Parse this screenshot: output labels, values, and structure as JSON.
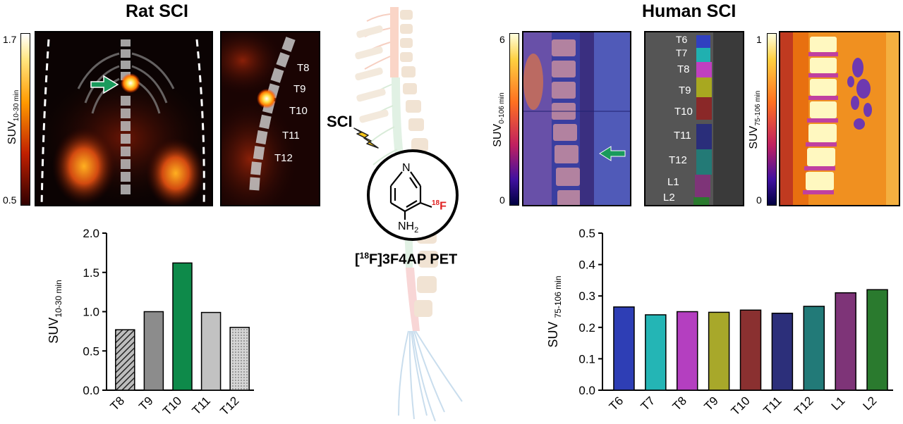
{
  "left": {
    "title": "Rat SCI",
    "colorbar": {
      "max": "1.7",
      "min": "0.5"
    },
    "suv_label": "SUV",
    "suv_sub": "10-30 min",
    "levels": [
      "T8",
      "T9",
      "T10",
      "T11",
      "T12"
    ]
  },
  "right": {
    "title": "Human SCI",
    "colorbar1": {
      "max": "6",
      "min": "0"
    },
    "suv1_label": "SUV",
    "suv1_sub": "0-106 min",
    "colorbar2": {
      "max": "1",
      "min": "0"
    },
    "suv2_label": "SUV",
    "suv2_sub": "75-106 min",
    "levels": [
      "T6",
      "T7",
      "T8",
      "T9",
      "T10",
      "T11",
      "T12",
      "L1",
      "L2"
    ]
  },
  "center": {
    "sci_label": "SCI",
    "amine": "NH",
    "amine_sub": "2",
    "ring_n": "N",
    "fluorine_mass": "18",
    "fluorine": "F",
    "pet_title": "[",
    "pet_mass": "18",
    "pet_rest": "F]3F4AP PET"
  },
  "colors": {
    "accent_green": "#1a9a5c",
    "bar_t10": "#0e8a4a"
  },
  "chart_data": [
    {
      "type": "bar",
      "categories": [
        "T8",
        "T9",
        "T10",
        "T11",
        "T12"
      ],
      "values": [
        0.77,
        1.0,
        1.62,
        0.99,
        0.8
      ],
      "ylabel": "SUV10-30 min",
      "ylim": [
        0,
        2.0
      ],
      "yticks": [
        "0.0",
        "0.5",
        "1.0",
        "1.5",
        "2.0"
      ],
      "colors": [
        "#555555",
        "#8c8c8c",
        "#0e8a4a",
        "#c2c2c2",
        "#c8c8c8"
      ]
    },
    {
      "type": "bar",
      "categories": [
        "T6",
        "T7",
        "T8",
        "T9",
        "T10",
        "T11",
        "T12",
        "L1",
        "L2"
      ],
      "values": [
        0.265,
        0.24,
        0.25,
        0.248,
        0.255,
        0.245,
        0.267,
        0.31,
        0.32
      ],
      "ylabel": "SUV 75-106 min",
      "ylim": [
        0,
        0.5
      ],
      "yticks": [
        "0.0",
        "0.1",
        "0.2",
        "0.3",
        "0.4",
        "0.5"
      ],
      "colors": [
        "#2e3eb5",
        "#24b5b5",
        "#b43fc0",
        "#a8a82a",
        "#8a3030",
        "#2c2f7a",
        "#227a78",
        "#7e3478",
        "#2a7a2e"
      ]
    }
  ]
}
